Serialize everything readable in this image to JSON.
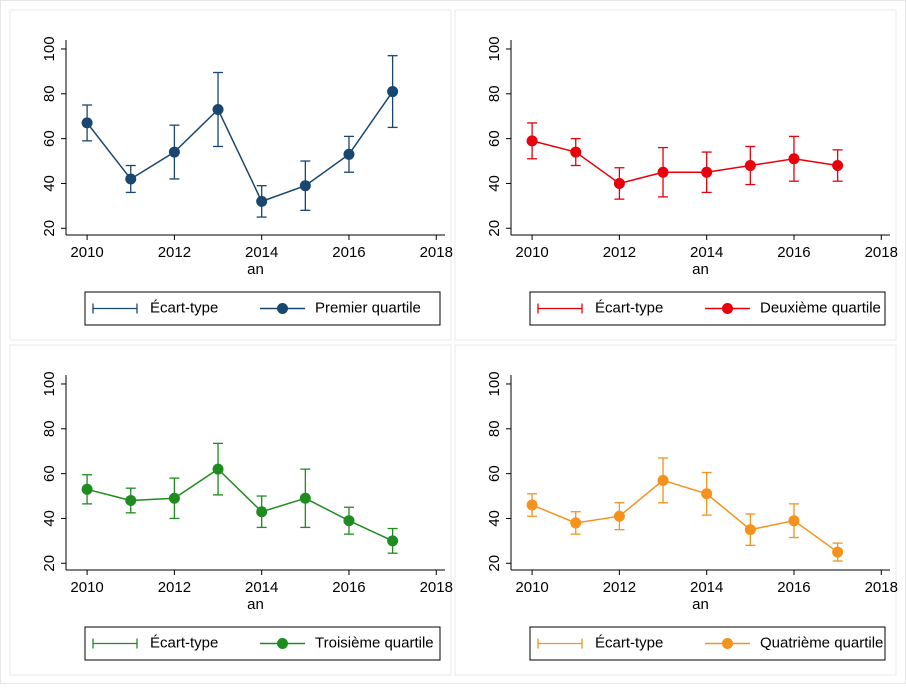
{
  "chart_data": [
    {
      "type": "line",
      "x_label": "an",
      "x": [
        2010,
        2011,
        2012,
        2013,
        2014,
        2015,
        2016,
        2017
      ],
      "xlim": [
        2009.7,
        2018.2
      ],
      "ylim": [
        17,
        104
      ],
      "xticks": [
        2010,
        2012,
        2014,
        2016,
        2018
      ],
      "yticks": [
        20,
        40,
        60,
        80,
        100
      ],
      "series": [
        {
          "name": "Premier quartile",
          "error_name": "Écart-type",
          "color": "#1a476f",
          "values": [
            67,
            42,
            54,
            73,
            32,
            39,
            53,
            81
          ],
          "errors": [
            8,
            6,
            12,
            16.5,
            7,
            11,
            8,
            16
          ]
        }
      ]
    },
    {
      "type": "line",
      "x_label": "an",
      "x": [
        2010,
        2011,
        2012,
        2013,
        2014,
        2015,
        2016,
        2017
      ],
      "xlim": [
        2009.7,
        2018.2
      ],
      "ylim": [
        17,
        104
      ],
      "xticks": [
        2010,
        2012,
        2014,
        2016,
        2018
      ],
      "yticks": [
        20,
        40,
        60,
        80,
        100
      ],
      "series": [
        {
          "name": "Deuxième quartile",
          "error_name": "Écart-type",
          "color": "#e8000b",
          "values": [
            59,
            54,
            40,
            45,
            45,
            48,
            51,
            48
          ],
          "errors": [
            8,
            6,
            7,
            11,
            9,
            8.5,
            10,
            7
          ]
        }
      ]
    },
    {
      "type": "line",
      "x_label": "an",
      "x": [
        2010,
        2011,
        2012,
        2013,
        2014,
        2015,
        2016,
        2017
      ],
      "xlim": [
        2009.7,
        2018.2
      ],
      "ylim": [
        17,
        104
      ],
      "xticks": [
        2010,
        2012,
        2014,
        2016,
        2018
      ],
      "yticks": [
        20,
        40,
        60,
        80,
        100
      ],
      "series": [
        {
          "name": "Troisième quartile",
          "error_name": "Écart-type",
          "color": "#1e8c1e",
          "values": [
            53,
            48,
            49,
            62,
            43,
            49,
            39,
            30
          ],
          "errors": [
            6.5,
            5.5,
            9,
            11.5,
            7,
            13,
            6,
            5.5
          ]
        }
      ]
    },
    {
      "type": "line",
      "x_label": "an",
      "x": [
        2010,
        2011,
        2012,
        2013,
        2014,
        2015,
        2016,
        2017
      ],
      "xlim": [
        2009.7,
        2018.2
      ],
      "ylim": [
        17,
        104
      ],
      "xticks": [
        2010,
        2012,
        2014,
        2016,
        2018
      ],
      "yticks": [
        20,
        40,
        60,
        80,
        100
      ],
      "series": [
        {
          "name": "Quatrième quartile",
          "error_name": "Écart-type",
          "color": "#f5921e",
          "values": [
            46,
            38,
            41,
            57,
            51,
            35,
            39,
            25
          ],
          "errors": [
            5,
            5,
            6,
            10,
            9.5,
            7,
            7.5,
            4
          ]
        }
      ]
    }
  ]
}
